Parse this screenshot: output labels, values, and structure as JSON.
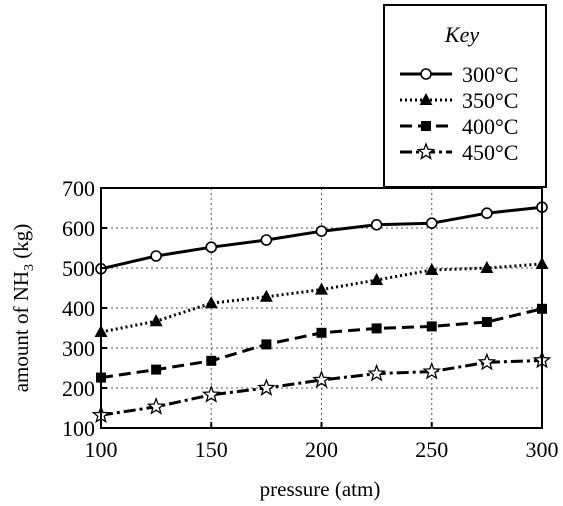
{
  "chart_data": {
    "type": "line",
    "xlabel": "pressure (atm)",
    "ylabel_main": "amount of NH",
    "ylabel_sub": "3",
    "ylabel_unit": " (kg)",
    "xlim": [
      100,
      300
    ],
    "ylim": [
      100,
      700
    ],
    "x_ticks": [
      100,
      150,
      200,
      250,
      300
    ],
    "y_ticks": [
      100,
      200,
      300,
      400,
      500,
      600,
      700
    ],
    "grid": true,
    "legend_title": "Key",
    "legend_position": "top-right",
    "x": [
      100,
      125,
      150,
      175,
      200,
      225,
      250,
      275,
      300
    ],
    "series": [
      {
        "name": "300°C",
        "marker": "open-circle",
        "line": "solid",
        "values": [
          498,
          530,
          552,
          570,
          592,
          608,
          612,
          637,
          652
        ]
      },
      {
        "name": "350°C",
        "marker": "filled-triangle",
        "line": "dotted",
        "values": [
          340,
          367,
          412,
          428,
          446,
          470,
          495,
          500,
          510
        ]
      },
      {
        "name": "400°C",
        "marker": "filled-square",
        "line": "dashed",
        "values": [
          226,
          246,
          268,
          309,
          338,
          349,
          354,
          365,
          398
        ]
      },
      {
        "name": "450°C",
        "marker": "open-star",
        "line": "dash-dot",
        "values": [
          132,
          153,
          183,
          200,
          220,
          236,
          241,
          264,
          269
        ]
      }
    ]
  }
}
